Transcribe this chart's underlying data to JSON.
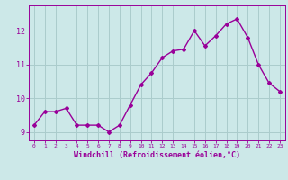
{
  "x": [
    0,
    1,
    2,
    3,
    4,
    5,
    6,
    7,
    8,
    9,
    10,
    11,
    12,
    13,
    14,
    15,
    16,
    17,
    18,
    19,
    20,
    21,
    22,
    23
  ],
  "y": [
    9.2,
    9.6,
    9.6,
    9.7,
    9.2,
    9.2,
    9.2,
    9.0,
    9.2,
    9.8,
    10.4,
    10.75,
    11.2,
    11.4,
    11.45,
    12.0,
    11.55,
    11.85,
    12.2,
    12.35,
    11.8,
    11.0,
    10.45,
    10.2
  ],
  "line_color": "#990099",
  "marker": "D",
  "marker_size": 2.0,
  "line_width": 1.0,
  "bg_color": "#cce8e8",
  "grid_color": "#aacccc",
  "xlabel": "Windchill (Refroidissement éolien,°C)",
  "xlabel_color": "#990099",
  "tick_color": "#990099",
  "ylim": [
    8.75,
    12.75
  ],
  "yticks": [
    9,
    10,
    11,
    12
  ],
  "xticks": [
    0,
    1,
    2,
    3,
    4,
    5,
    6,
    7,
    8,
    9,
    10,
    11,
    12,
    13,
    14,
    15,
    16,
    17,
    18,
    19,
    20,
    21,
    22,
    23
  ],
  "xlim": [
    -0.5,
    23.5
  ]
}
